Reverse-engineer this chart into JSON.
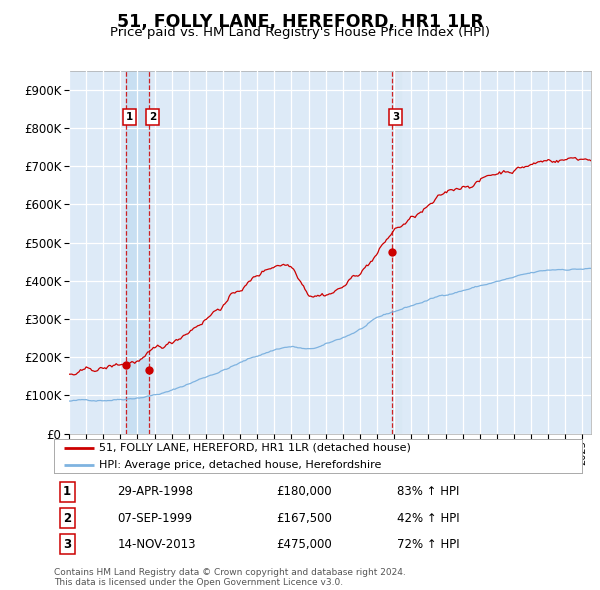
{
  "title": "51, FOLLY LANE, HEREFORD, HR1 1LR",
  "subtitle": "Price paid vs. HM Land Registry's House Price Index (HPI)",
  "background_color": "#ffffff",
  "plot_bg_color": "#ddeaf7",
  "grid_color": "#ffffff",
  "red_line_color": "#cc0000",
  "blue_line_color": "#7fb3e0",
  "sale_marker_color": "#cc0000",
  "dashed_line_color": "#cc0000",
  "highlight_bg_color1": "#c8dff2",
  "highlight_bg_color3": "#d8e8f4",
  "ylim": [
    0,
    950000
  ],
  "yticks": [
    0,
    100000,
    200000,
    300000,
    400000,
    500000,
    600000,
    700000,
    800000,
    900000
  ],
  "xmin": 1995.0,
  "xmax": 2025.5,
  "sale_dates": [
    1998.33,
    1999.69,
    2013.88
  ],
  "sale_prices": [
    180000,
    167500,
    475000
  ],
  "sale_labels_info": [
    {
      "label": "1",
      "date": "29-APR-1998",
      "price": "£180,000",
      "hpi": "83% ↑ HPI"
    },
    {
      "label": "2",
      "date": "07-SEP-1999",
      "price": "£167,500",
      "hpi": "42% ↑ HPI"
    },
    {
      "label": "3",
      "date": "14-NOV-2013",
      "price": "£475,000",
      "hpi": "72% ↑ HPI"
    }
  ],
  "legend_line1": "51, FOLLY LANE, HEREFORD, HR1 1LR (detached house)",
  "legend_line2": "HPI: Average price, detached house, Herefordshire",
  "footer": "Contains HM Land Registry data © Crown copyright and database right 2024.\nThis data is licensed under the Open Government Licence v3.0."
}
